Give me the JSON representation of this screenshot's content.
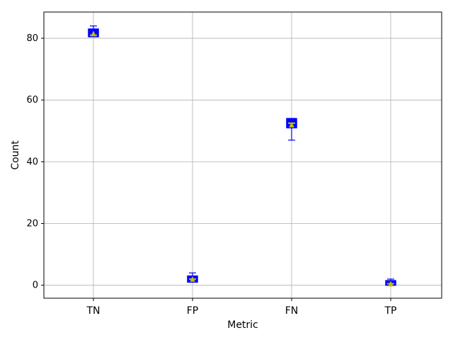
{
  "chart_data": {
    "type": "box",
    "title": "",
    "xlabel": "Metric",
    "ylabel": "Count",
    "categories": [
      "TN",
      "FP",
      "FN",
      "TP"
    ],
    "ylim": [
      -4.2,
      88.5
    ],
    "yticks": [
      0,
      20,
      40,
      60,
      80
    ],
    "grid": true,
    "boxes": [
      {
        "category": "TN",
        "whisker_low": 80.5,
        "q1": 80.5,
        "median": 81.0,
        "q3": 83.0,
        "whisker_high": 84.0,
        "mean": 81.5
      },
      {
        "category": "FP",
        "whisker_low": 1.0,
        "q1": 1.0,
        "median": 2.0,
        "q3": 3.0,
        "whisker_high": 4.0,
        "mean": 2.0
      },
      {
        "category": "FN",
        "whisker_low": 47.0,
        "q1": 51.0,
        "median": 52.5,
        "q3": 54.0,
        "whisker_high": 54.0,
        "mean": 52.0
      },
      {
        "category": "TP",
        "whisker_low": 0.0,
        "q1": 0.0,
        "median": 0.5,
        "q3": 1.5,
        "whisker_high": 2.0,
        "mean": 0.5
      }
    ],
    "colors": {
      "box_edge": "#0000ff",
      "box_fill": "#0000ff",
      "median": "#bfbf00",
      "mean": "#bfbf00",
      "grid": "#b0b0b0"
    }
  }
}
